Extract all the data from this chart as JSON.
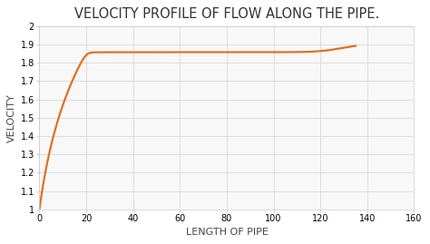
{
  "title": "VELOCITY PROFILE OF FLOW ALONG THE PIPE.",
  "xlabel": "LENGTH OF PIPE",
  "ylabel": "VELOCITY",
  "xlim": [
    0,
    160
  ],
  "ylim": [
    1,
    2
  ],
  "xticks": [
    0,
    20,
    40,
    60,
    80,
    100,
    120,
    140,
    160
  ],
  "yticks": [
    1,
    1.1,
    1.2,
    1.3,
    1.4,
    1.5,
    1.6,
    1.7,
    1.8,
    1.9,
    2
  ],
  "ytick_labels": [
    "1",
    "1.1",
    "1.2",
    "1.3",
    "1.4",
    "1.5",
    "1.6",
    "1.7",
    "1.8",
    "1.9",
    "2"
  ],
  "line_color": "#E07020",
  "line_width": 1.6,
  "background_color": "#ffffff",
  "plot_bg_color": "#f8f8f8",
  "grid_color": "#d8d8d8",
  "title_fontsize": 10.5,
  "label_fontsize": 8,
  "tick_fontsize": 7
}
